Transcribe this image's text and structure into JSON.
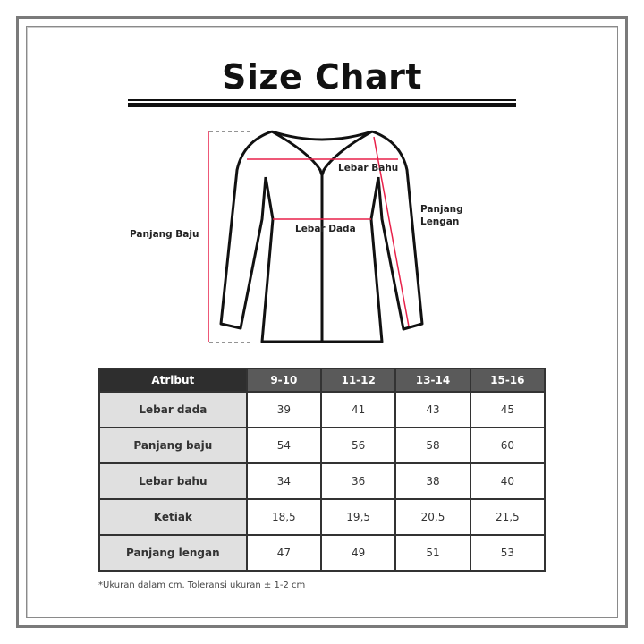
{
  "title": "Size Chart",
  "diagram": {
    "labels": {
      "panjang_baju": "Panjang Baju",
      "lebar_bahu": "Lebar Bahu",
      "lebar_dada": "Lebar Dada",
      "panjang_lengan_1": "Panjang",
      "panjang_lengan_2": "Lengan"
    },
    "line_color": "#111111",
    "measure_color": "#e8214a"
  },
  "table": {
    "headers": [
      "Atribut",
      "9-10",
      "11-12",
      "13-14",
      "15-16"
    ],
    "rows": [
      {
        "label": "Lebar dada",
        "values": [
          "39",
          "41",
          "43",
          "45"
        ]
      },
      {
        "label": "Panjang baju",
        "values": [
          "54",
          "56",
          "58",
          "60"
        ]
      },
      {
        "label": "Lebar bahu",
        "values": [
          "34",
          "36",
          "38",
          "40"
        ]
      },
      {
        "label": "Ketiak",
        "values": [
          "18,5",
          "19,5",
          "20,5",
          "21,5"
        ]
      },
      {
        "label": "Panjang lengan",
        "values": [
          "47",
          "49",
          "51",
          "53"
        ]
      }
    ]
  },
  "note": "*Ukuran dalam cm. Toleransi ukuran ± 1-2 cm"
}
